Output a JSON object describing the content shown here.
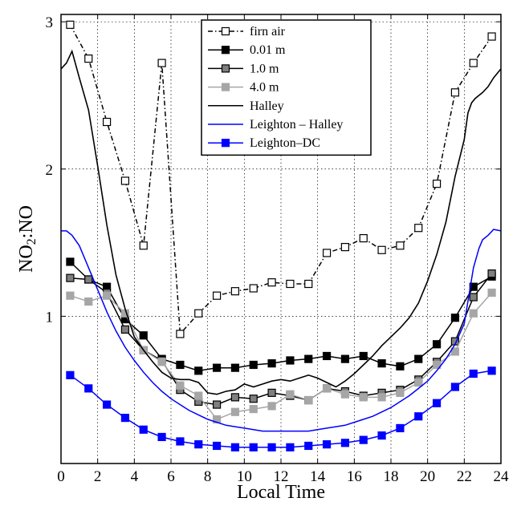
{
  "chart_data": {
    "type": "line",
    "title": "",
    "xlabel": "Local Time",
    "ylabel_main": "NO",
    "ylabel_sub": "2",
    "ylabel_tail": ":NO",
    "xlim": [
      0,
      24
    ],
    "ylim": [
      0,
      3.05
    ],
    "xticks": [
      0,
      2,
      4,
      6,
      8,
      10,
      12,
      14,
      16,
      18,
      20,
      22,
      24
    ],
    "yticks": [
      1,
      2,
      3
    ],
    "grid": true,
    "legend_position": "top-center",
    "series": [
      {
        "name": "firn air",
        "color": "#000000",
        "line": "dashdot",
        "marker": "square-open",
        "x": [
          0.5,
          1.5,
          2.5,
          3.5,
          4.5,
          5.5,
          6.5,
          7.5,
          8.5,
          9.5,
          10.5,
          11.5,
          12.5,
          13.5,
          14.5,
          15.5,
          16.5,
          17.5,
          18.5,
          19.5,
          20.5,
          21.5,
          22.5,
          23.5
        ],
        "y": [
          2.98,
          2.75,
          2.32,
          1.92,
          1.48,
          2.72,
          0.88,
          1.02,
          1.14,
          1.17,
          1.19,
          1.23,
          1.22,
          1.22,
          1.43,
          1.47,
          1.53,
          1.45,
          1.48,
          1.6,
          1.9,
          2.52,
          2.72,
          2.9
        ]
      },
      {
        "name": "0.01 m",
        "color": "#000000",
        "line": "solid",
        "marker": "square-filled",
        "fill": "#000000",
        "x": [
          0.5,
          1.5,
          2.5,
          3.5,
          4.5,
          5.5,
          6.5,
          7.5,
          8.5,
          9.5,
          10.5,
          11.5,
          12.5,
          13.5,
          14.5,
          15.5,
          16.5,
          17.5,
          18.5,
          19.5,
          20.5,
          21.5,
          22.5,
          23.5
        ],
        "y": [
          1.37,
          1.25,
          1.2,
          0.98,
          0.87,
          0.71,
          0.67,
          0.63,
          0.65,
          0.65,
          0.67,
          0.68,
          0.7,
          0.71,
          0.73,
          0.71,
          0.73,
          0.68,
          0.66,
          0.71,
          0.81,
          0.99,
          1.2,
          1.27
        ]
      },
      {
        "name": "1.0 m",
        "color": "#000000",
        "line": "solid",
        "marker": "square-filled",
        "fill": "#7f7f7f",
        "x": [
          0.5,
          1.5,
          2.5,
          3.5,
          4.5,
          5.5,
          6.5,
          7.5,
          8.5,
          9.5,
          10.5,
          11.5,
          12.5,
          13.5,
          14.5,
          15.5,
          16.5,
          17.5,
          18.5,
          19.5,
          20.5,
          21.5,
          22.5,
          23.5
        ],
        "y": [
          1.26,
          1.25,
          1.16,
          0.91,
          0.77,
          0.7,
          0.5,
          0.42,
          0.4,
          0.45,
          0.44,
          0.48,
          0.46,
          0.43,
          0.51,
          0.49,
          0.46,
          0.48,
          0.5,
          0.57,
          0.69,
          0.83,
          1.13,
          1.29
        ]
      },
      {
        "name": "4.0 m",
        "color": "#a6a6a6",
        "line": "solid",
        "marker": "square-filled",
        "fill": "#a6a6a6",
        "x": [
          0.5,
          1.5,
          2.5,
          3.5,
          4.5,
          5.5,
          6.5,
          7.5,
          8.5,
          9.5,
          10.5,
          11.5,
          12.5,
          13.5,
          14.5,
          15.5,
          16.5,
          17.5,
          18.5,
          19.5,
          20.5,
          21.5,
          22.5,
          23.5
        ],
        "y": [
          1.14,
          1.1,
          1.14,
          1.02,
          0.77,
          0.69,
          0.53,
          0.46,
          0.3,
          0.35,
          0.37,
          0.39,
          0.47,
          0.43,
          0.51,
          0.47,
          0.45,
          0.45,
          0.48,
          0.55,
          0.67,
          0.76,
          1.02,
          1.16
        ]
      },
      {
        "name": "Halley",
        "color": "#000000",
        "line": "solid",
        "marker": "none",
        "x": [
          0,
          0.3,
          0.6,
          1,
          1.5,
          2,
          2.5,
          3,
          3.5,
          4,
          4.5,
          5,
          5.5,
          6,
          6.5,
          7,
          7.5,
          8,
          8.5,
          9,
          9.5,
          10,
          10.5,
          11,
          11.5,
          12,
          12.5,
          13,
          13.5,
          14,
          14.5,
          15,
          15.5,
          16,
          16.5,
          17,
          17.5,
          18,
          18.5,
          19,
          19.5,
          20,
          20.5,
          21,
          21.5,
          22,
          22.2,
          22.4,
          22.6,
          23,
          23.3,
          23.6,
          24
        ],
        "y": [
          2.68,
          2.72,
          2.8,
          2.62,
          2.4,
          2.02,
          1.62,
          1.28,
          1.05,
          0.86,
          0.77,
          0.69,
          0.62,
          0.58,
          0.57,
          0.57,
          0.55,
          0.48,
          0.47,
          0.49,
          0.5,
          0.54,
          0.52,
          0.54,
          0.56,
          0.57,
          0.56,
          0.58,
          0.6,
          0.58,
          0.55,
          0.52,
          0.56,
          0.61,
          0.67,
          0.73,
          0.8,
          0.86,
          0.92,
          0.99,
          1.09,
          1.24,
          1.42,
          1.64,
          1.95,
          2.2,
          2.38,
          2.45,
          2.48,
          2.52,
          2.56,
          2.62,
          2.68
        ]
      },
      {
        "name": "Leighton – Halley",
        "color": "#0000ff",
        "line": "solid",
        "marker": "none",
        "x": [
          0,
          0.3,
          0.6,
          1,
          1.5,
          2,
          2.5,
          3,
          3.5,
          4,
          4.5,
          5,
          5.5,
          6,
          6.5,
          7,
          7.5,
          8,
          8.5,
          9,
          9.5,
          10,
          10.5,
          11,
          11.5,
          12,
          12.5,
          13,
          13.5,
          14,
          14.5,
          15,
          15.5,
          16,
          16.5,
          17,
          17.5,
          18,
          18.5,
          19,
          19.5,
          20,
          20.5,
          21,
          21.5,
          22,
          22.5,
          22.8,
          23,
          23.3,
          23.6,
          24
        ],
        "y": [
          1.58,
          1.58,
          1.55,
          1.48,
          1.33,
          1.18,
          1.03,
          0.9,
          0.79,
          0.7,
          0.62,
          0.55,
          0.49,
          0.44,
          0.4,
          0.36,
          0.33,
          0.3,
          0.28,
          0.26,
          0.25,
          0.24,
          0.23,
          0.22,
          0.22,
          0.22,
          0.22,
          0.22,
          0.22,
          0.23,
          0.24,
          0.25,
          0.26,
          0.28,
          0.3,
          0.32,
          0.35,
          0.38,
          0.42,
          0.46,
          0.51,
          0.56,
          0.63,
          0.71,
          0.81,
          0.95,
          1.33,
          1.46,
          1.52,
          1.55,
          1.59,
          1.58
        ]
      },
      {
        "name": "Leighton–DC",
        "color": "#0000ff",
        "line": "solid",
        "marker": "square-filled",
        "fill": "#0000ff",
        "x": [
          0.5,
          1.5,
          2.5,
          3.5,
          4.5,
          5.5,
          6.5,
          7.5,
          8.5,
          9.5,
          10.5,
          11.5,
          12.5,
          13.5,
          14.5,
          15.5,
          16.5,
          17.5,
          18.5,
          19.5,
          20.5,
          21.5,
          22.5,
          23.5
        ],
        "y": [
          0.6,
          0.51,
          0.4,
          0.31,
          0.23,
          0.18,
          0.15,
          0.13,
          0.12,
          0.11,
          0.11,
          0.11,
          0.11,
          0.12,
          0.13,
          0.14,
          0.16,
          0.19,
          0.24,
          0.32,
          0.41,
          0.52,
          0.61,
          0.63
        ]
      }
    ]
  }
}
